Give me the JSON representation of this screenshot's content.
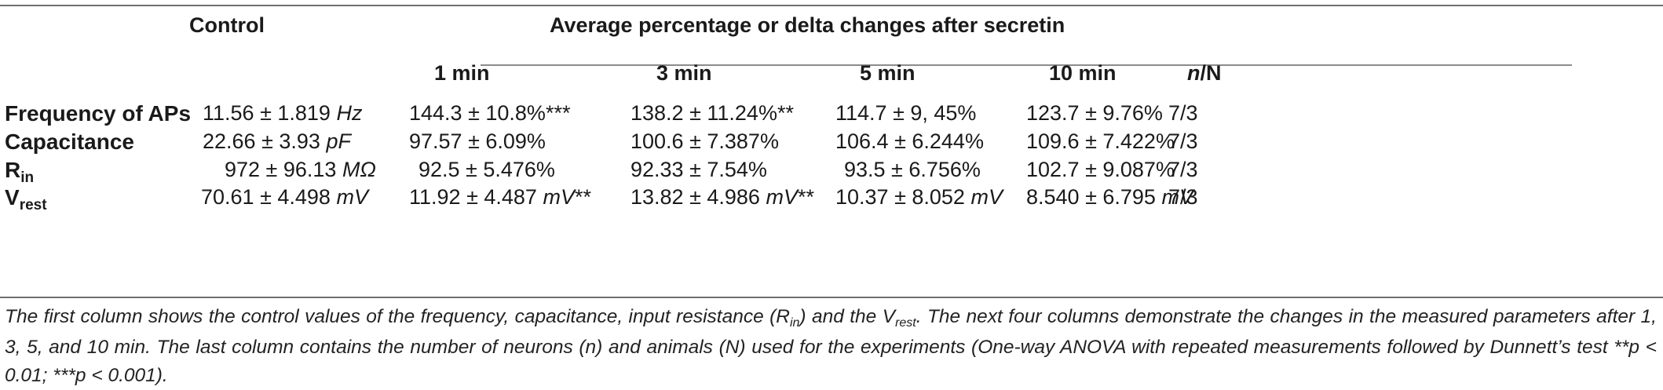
{
  "header": {
    "control": "Control",
    "group": "Average percentage or delta changes after secretin",
    "cols": [
      "1 min",
      "3 min",
      "5 min",
      "10 min"
    ],
    "n_label_italic": "n",
    "n_label_rest": "/N"
  },
  "rows": [
    {
      "label": "Frequency of APs",
      "label_sub": "",
      "control_num": "11.56 ± 1.819 ",
      "control_unit": "Hz",
      "c1": "144.3 ± 10.8%***",
      "c3": "138.2 ± 11.24%**",
      "c5": "114.7 ± 9, 45%",
      "c10": "123.7 ± 9.76%",
      "n": "7/3"
    },
    {
      "label": "Capacitance",
      "label_sub": "",
      "control_num": "22.66 ± 3.93 ",
      "control_unit": "pF",
      "c1": "97.57 ± 6.09%",
      "c3": "100.6 ± 7.387%",
      "c5": "106.4 ± 6.244%",
      "c10": "109.6 ± 7.422%",
      "n": "7/3"
    },
    {
      "label": "R",
      "label_sub": "in",
      "control_num": "972 ± 96.13 ",
      "control_unit": "MΩ",
      "c1": "92.5 ± 5.476%",
      "c3": "92.33 ± 7.54%",
      "c5": "93.5 ± 6.756%",
      "c10": "102.7 ± 9.087%",
      "n": "7/3"
    },
    {
      "label": "V",
      "label_sub": "rest",
      "control_num": "70.61 ± 4.498 ",
      "control_unit": "mV",
      "c1_num": "11.92 ± 4.487 ",
      "c1_unit": "mV",
      "c1_suffix": "**",
      "c3_num": "13.82 ± 4.986 ",
      "c3_unit": "mV",
      "c3_suffix": "**",
      "c5_num": "10.37 ± 8.052 ",
      "c5_unit": "mV",
      "c10_num": "8.540 ± 6.795 ",
      "c10_unit": "mV",
      "n": "7/3"
    }
  ],
  "caption": {
    "p1": "The first column shows the control values of the frequency, capacitance, input resistance (R",
    "p1_sub": "in",
    "p2": ") and the V",
    "p2_sub": "rest",
    "p3": ". The next four columns demonstrate the changes in the measured parameters after 1, 3, 5, and 10 min. The last column contains the number of neurons (n) and animals (N) used for the experiments (One-way ANOVA with repeated measurements followed by Dunnett’s test **p < 0.01; ***p < 0.001)."
  }
}
